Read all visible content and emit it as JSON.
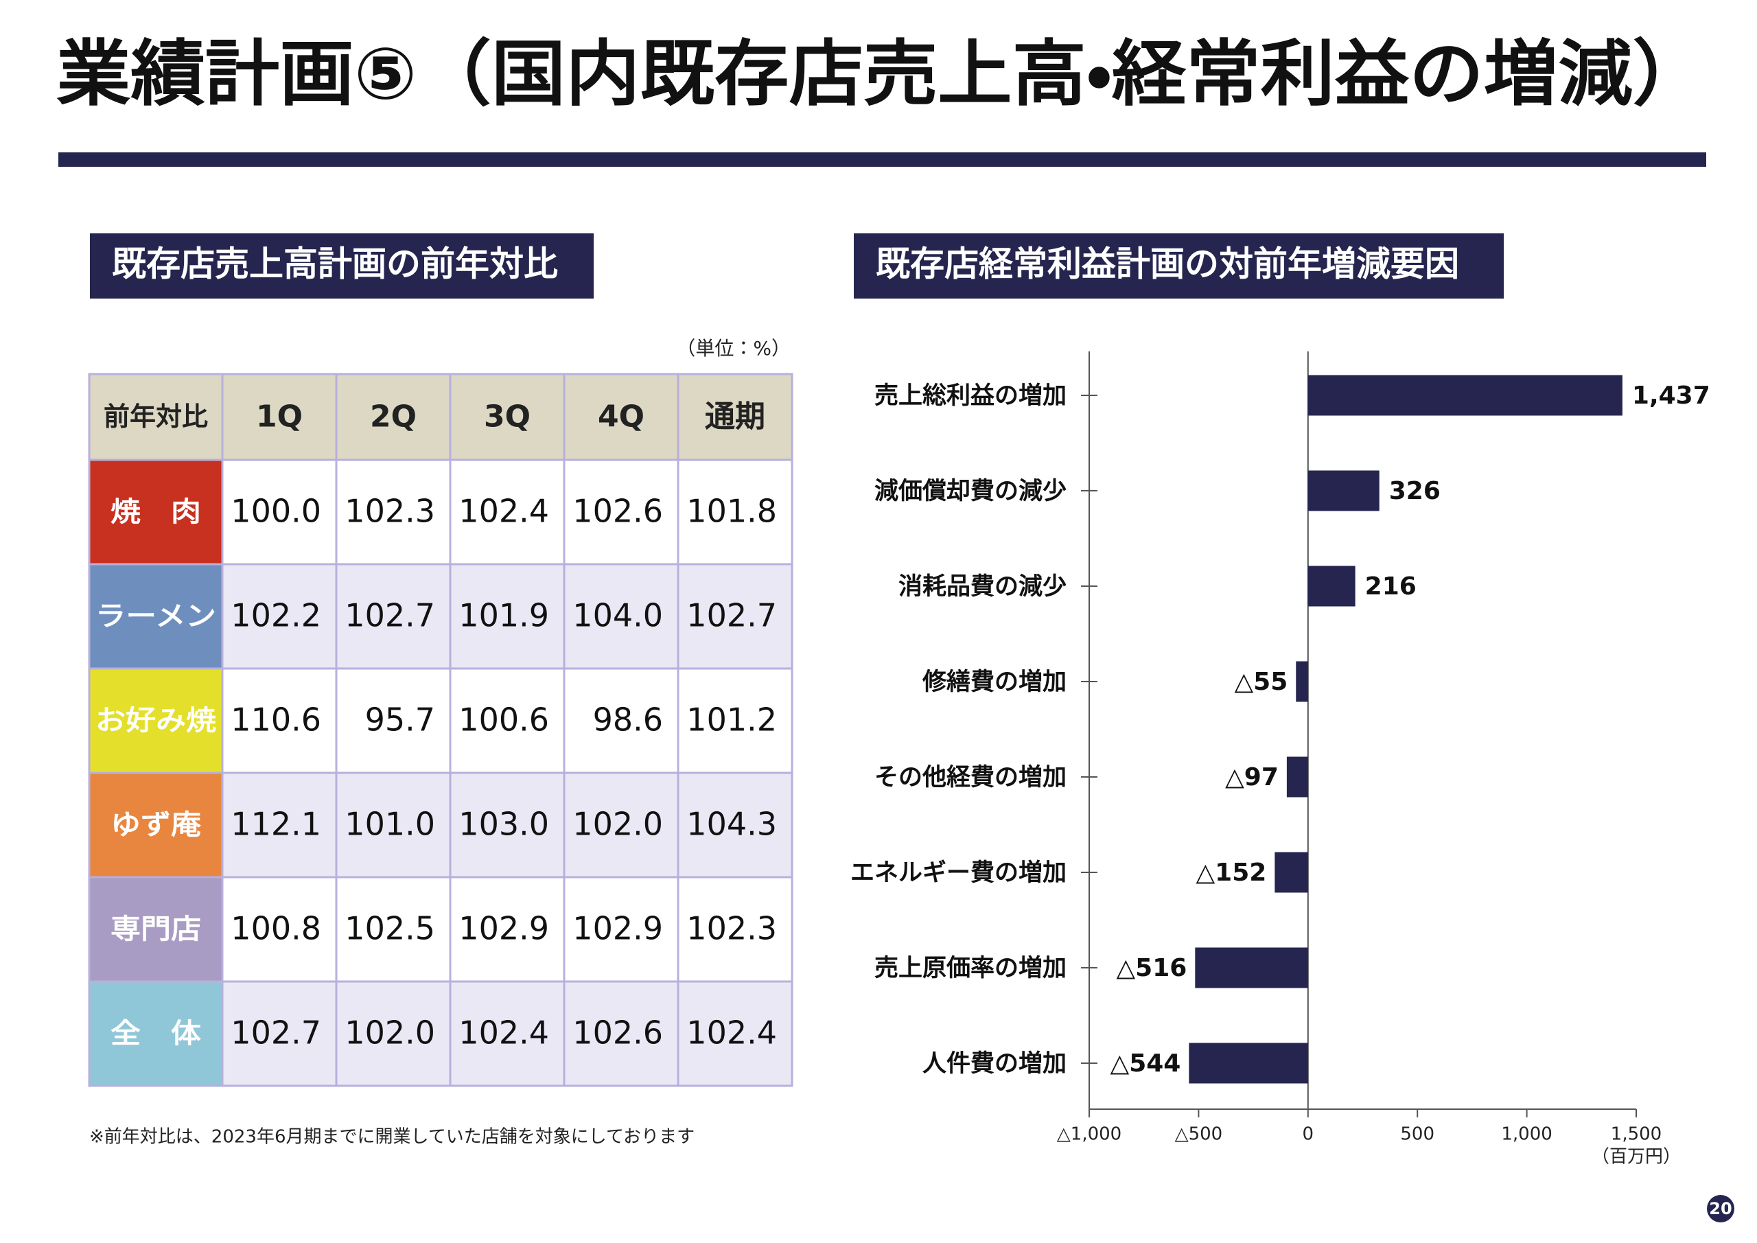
{
  "title": "業績計画⑤（国内既存店売上高・経常利益の増減）",
  "table_section": {
    "heading": "既存店売上高計画の前年対比",
    "unit": "（単位：%）",
    "columns": [
      "前年対比",
      "1Q",
      "2Q",
      "3Q",
      "4Q",
      "通期"
    ],
    "rows": [
      {
        "label": "焼　肉",
        "color": "#c8301f",
        "cells": [
          "100.0",
          "102.3",
          "102.4",
          "102.6",
          "101.8"
        ]
      },
      {
        "label": "ラーメン",
        "color": "#6e8fbe",
        "cells": [
          "102.2",
          "102.7",
          "101.9",
          "104.0",
          "102.7"
        ]
      },
      {
        "label": "お好み焼",
        "color": "#e4df2a",
        "cells": [
          "110.6",
          "95.7",
          "100.6",
          "98.6",
          "101.2"
        ]
      },
      {
        "label": "ゆず庵",
        "color": "#e88640",
        "cells": [
          "112.1",
          "101.0",
          "103.0",
          "102.0",
          "104.3"
        ]
      },
      {
        "label": "専門店",
        "color": "#a89cc4",
        "cells": [
          "100.8",
          "102.5",
          "102.9",
          "102.9",
          "102.3"
        ]
      },
      {
        "label": "全　体",
        "color": "#8fc7d8",
        "cells": [
          "102.7",
          "102.0",
          "102.4",
          "102.6",
          "102.4"
        ]
      }
    ],
    "note": "※前年対比は、2023年6月期までに開業していた店舗を対象にしております"
  },
  "chart_data": {
    "type": "bar",
    "orientation": "horizontal",
    "title": "既存店経常利益計画の対前年増減要因",
    "categories": [
      "売上総利益の増加",
      "減価償却費の減少",
      "消耗品費の減少",
      "修繕費の増加",
      "その他経費の増加",
      "エネルギー費の増加",
      "売上原価率の増加",
      "人件費の増加"
    ],
    "values": [
      1437,
      326,
      216,
      -55,
      -97,
      -152,
      -516,
      -544
    ],
    "value_labels": [
      "1,437",
      "326",
      "216",
      "△55",
      "△97",
      "△152",
      "△516",
      "△544"
    ],
    "color": "#25254f",
    "xlim": [
      -1000,
      1500
    ],
    "xticks": [
      {
        "value": -1000,
        "label": "△1,000"
      },
      {
        "value": -500,
        "label": "△500"
      },
      0,
      500,
      {
        "value": 1000,
        "label": "1,000"
      },
      {
        "value": 1500,
        "label": "1,500"
      }
    ],
    "x_unit": "（百万円）"
  },
  "page_number": "20"
}
